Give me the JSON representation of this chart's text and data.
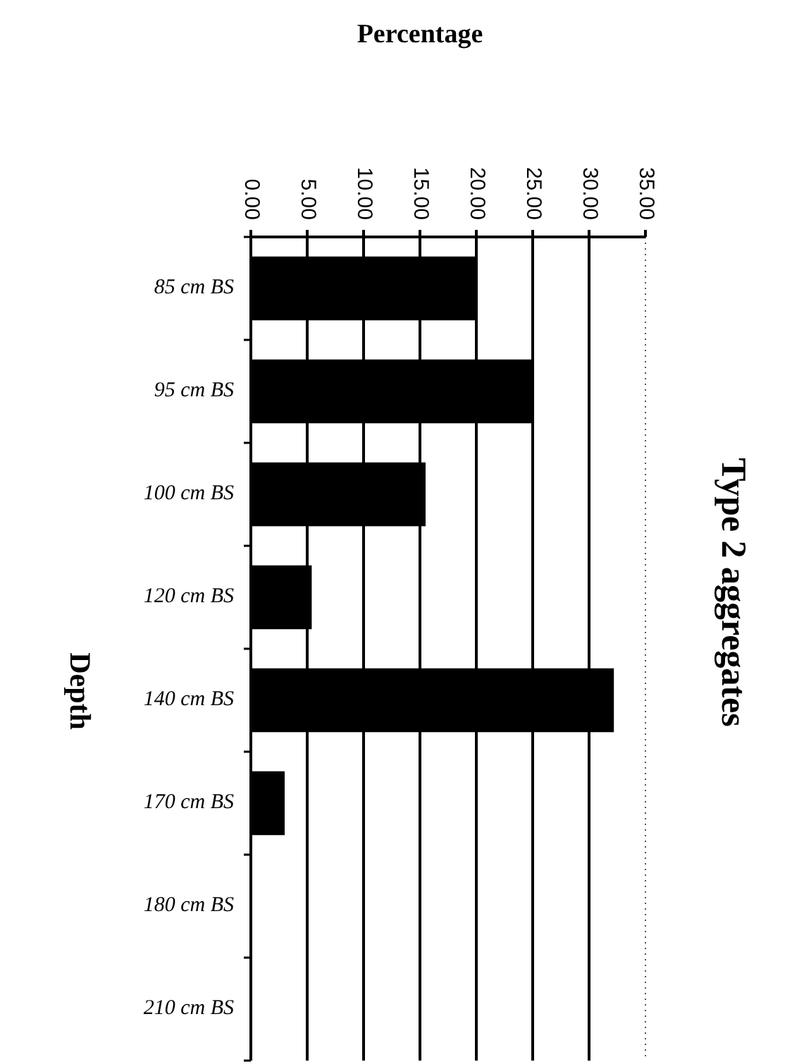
{
  "chart_data": {
    "type": "bar",
    "orientation": "horizontal",
    "title": "Type 2 aggregates",
    "xlabel": "Percentage",
    "ylabel": "Depth",
    "categories": [
      "85 cm BS",
      "95 cm BS",
      "100 cm BS",
      "120 cm BS",
      "140 cm BS",
      "170 cm BS",
      "180 cm BS",
      "210 cm BS"
    ],
    "values": [
      20.0,
      25.0,
      15.5,
      5.4,
      32.2,
      3.0,
      0,
      0
    ],
    "color": "#000000",
    "xlim": [
      0,
      35
    ],
    "xticks": [
      {
        "value": 0,
        "label": "0.00"
      },
      {
        "value": 5,
        "label": "5.00"
      },
      {
        "value": 10,
        "label": "10.00"
      },
      {
        "value": 15,
        "label": "15.00"
      },
      {
        "value": 20,
        "label": "20.00"
      },
      {
        "value": 25,
        "label": "25.00"
      },
      {
        "value": 30,
        "label": "30.00"
      },
      {
        "value": 35,
        "label": "35.00"
      }
    ],
    "grid": "x"
  }
}
